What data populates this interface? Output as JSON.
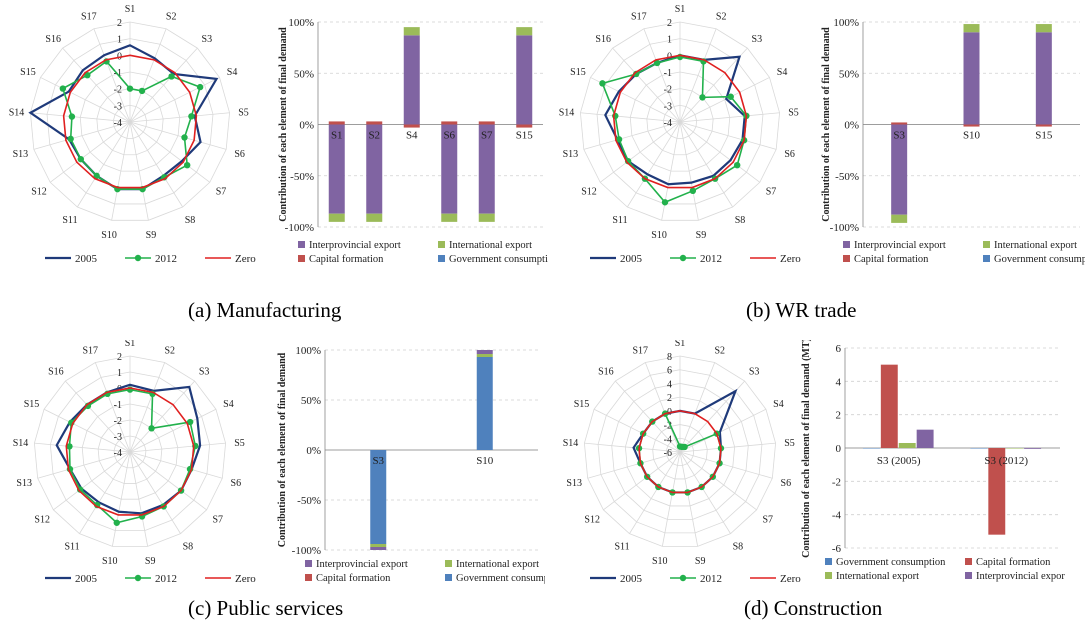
{
  "captions": {
    "a": "(a) Manufacturing",
    "b": "(b) WR trade",
    "c": "(c) Public services",
    "d": "(d) Construction"
  },
  "colors": {
    "s2005": "#1f3a7a",
    "s2012": "#22b14c",
    "zero": "#e02020",
    "interprovincial": "#8064a2",
    "international": "#9bbb59",
    "capital": "#c0504d",
    "government": "#4f81bd"
  },
  "chart_data": [
    {
      "id": "a-radar",
      "type": "radar",
      "axes": [
        "S1",
        "S2",
        "S3",
        "S4",
        "S5",
        "S6",
        "S7",
        "S8",
        "S9",
        "S10",
        "S11",
        "S12",
        "S13",
        "S14",
        "S15",
        "S16",
        "S17"
      ],
      "r_ticks": [
        "2",
        "1",
        "0",
        "-1",
        "-2",
        "-3",
        "-4"
      ],
      "rlim": [
        -4,
        2
      ],
      "series": [
        {
          "name": "2005",
          "values": [
            0.6,
            0.1,
            -0.1,
            1.8,
            -0.1,
            0.4,
            -0.1,
            -0.2,
            0.1,
            0.1,
            -0.2,
            -0.3,
            -0.2,
            2.0,
            0.1,
            0.2,
            0.3
          ]
        },
        {
          "name": "2012",
          "values": [
            -2.0,
            -2.0,
            -0.3,
            0.7,
            -0.3,
            -0.6,
            0.3,
            -0.1,
            0.1,
            0.1,
            -0.2,
            -0.3,
            -0.3,
            -0.5,
            0.5,
            -0.2,
            -0.1
          ]
        },
        {
          "name": "Zero",
          "values": [
            0,
            0,
            0,
            0,
            0,
            0,
            0,
            0,
            0,
            0,
            0,
            0,
            0,
            0,
            0,
            0,
            0
          ]
        }
      ],
      "legend": [
        "2005",
        "2012",
        "Zero"
      ]
    },
    {
      "id": "a-bar",
      "type": "bar",
      "ylabel": "Contribution of each element of final demand",
      "ylim": [
        -100,
        100
      ],
      "y_ticks": [
        "100%",
        "50%",
        "0%",
        "-50%",
        "-100%"
      ],
      "categories": [
        "S1",
        "S2",
        "S4",
        "S6",
        "S7",
        "S15"
      ],
      "series": [
        {
          "name": "Interprovincial export",
          "values": [
            -87,
            -87,
            87,
            -87,
            -87,
            87
          ]
        },
        {
          "name": "International export",
          "values": [
            -8,
            -8,
            8,
            -8,
            -8,
            8
          ]
        },
        {
          "name": "Capital formation",
          "values": [
            3,
            3,
            -3,
            3,
            3,
            -3
          ]
        },
        {
          "name": "Government consumption",
          "values": [
            0,
            0,
            0,
            0,
            0,
            0
          ]
        }
      ],
      "legend": [
        "Interprovincial export",
        "International export",
        "Capital formation",
        "Government consumption"
      ]
    },
    {
      "id": "b-radar",
      "type": "radar",
      "axes": [
        "S1",
        "S2",
        "S3",
        "S4",
        "S5",
        "S6",
        "S7",
        "S8",
        "S9",
        "S10",
        "S11",
        "S12",
        "S13",
        "S14",
        "S15",
        "S16",
        "S17"
      ],
      "r_ticks": [
        "2",
        "1",
        "0",
        "-1",
        "-2",
        "-3",
        "-4"
      ],
      "rlim": [
        -4,
        2
      ],
      "series": [
        {
          "name": "2005",
          "values": [
            0,
            0,
            1.3,
            -0.9,
            -0.1,
            -0.1,
            -0.2,
            -0.2,
            -0.3,
            -0.2,
            -0.3,
            -0.1,
            -0.1,
            0.5,
            0.1,
            -0.1,
            -0.2
          ]
        },
        {
          "name": "2012",
          "values": [
            -0.1,
            -0.1,
            -2.0,
            -0.6,
            0,
            0,
            0.3,
            0,
            0.2,
            0.9,
            0,
            -0.1,
            -0.2,
            -0.1,
            1.2,
            -0.1,
            -0.2
          ]
        },
        {
          "name": "Zero",
          "values": [
            0,
            0,
            0,
            0,
            0,
            0,
            0,
            0,
            0,
            0,
            0,
            0,
            0,
            0,
            0,
            0,
            0
          ]
        }
      ],
      "legend": [
        "2005",
        "2012",
        "Zero"
      ]
    },
    {
      "id": "b-bar",
      "type": "bar",
      "ylabel": "Contribution of each element of final demand",
      "ylim": [
        -100,
        100
      ],
      "y_ticks": [
        "100%",
        "50%",
        "0%",
        "-50%",
        "-100%"
      ],
      "categories": [
        "S3",
        "S10",
        "S15"
      ],
      "series": [
        {
          "name": "Interprovincial export",
          "values": [
            -88,
            90,
            90
          ]
        },
        {
          "name": "International export",
          "values": [
            -8,
            8,
            8
          ]
        },
        {
          "name": "Capital formation",
          "values": [
            2,
            -2,
            -2
          ]
        },
        {
          "name": "Government consumption",
          "values": [
            0,
            0,
            0
          ]
        }
      ],
      "legend": [
        "Interprovincial export",
        "International export",
        "Capital formation",
        "Government consumption"
      ]
    },
    {
      "id": "c-radar",
      "type": "radar",
      "axes": [
        "S1",
        "S2",
        "S3",
        "S4",
        "S5",
        "S6",
        "S7",
        "S8",
        "S9",
        "S10",
        "S11",
        "S12",
        "S13",
        "S14",
        "S15",
        "S16",
        "S17"
      ],
      "r_ticks": [
        "2",
        "1",
        "0",
        "-1",
        "-2",
        "-3",
        "-4"
      ],
      "rlim": [
        -4,
        2
      ],
      "series": [
        {
          "name": "2005",
          "values": [
            0.2,
            0.1,
            1.5,
            0.7,
            0.4,
            0,
            0,
            -0.1,
            -0.1,
            -0.2,
            -0.3,
            -0.2,
            -0.1,
            0.6,
            0.2,
            0,
            0
          ]
        },
        {
          "name": "2012",
          "values": [
            -0.1,
            -0.1,
            -2.0,
            0.2,
            0.1,
            -0.1,
            0,
            0,
            0.1,
            0.5,
            -0.1,
            -0.1,
            -0.1,
            -0.2,
            0.1,
            -0.1,
            -0.1
          ]
        },
        {
          "name": "Zero",
          "values": [
            0,
            0,
            0,
            0,
            0,
            0,
            0,
            0,
            0,
            0,
            0,
            0,
            0,
            0,
            0,
            0,
            0
          ]
        }
      ],
      "legend": [
        "2005",
        "2012",
        "Zero"
      ]
    },
    {
      "id": "c-bar",
      "type": "bar",
      "ylabel": "Contribution of each element of final demand",
      "ylim": [
        -100,
        100
      ],
      "y_ticks": [
        "100%",
        "50%",
        "0%",
        "-50%",
        "-100%"
      ],
      "categories": [
        "S3",
        "S10"
      ],
      "series": [
        {
          "name": "Government consumption",
          "values": [
            -94,
            93
          ]
        },
        {
          "name": "International export",
          "values": [
            -3,
            3
          ]
        },
        {
          "name": "Interprovincial export",
          "values": [
            -3,
            4
          ]
        },
        {
          "name": "Capital formation",
          "values": [
            0,
            0
          ]
        }
      ],
      "legend": [
        "Interprovincial export",
        "International export",
        "Capital formation",
        "Government consumption"
      ]
    },
    {
      "id": "d-radar",
      "type": "radar",
      "axes": [
        "S1",
        "S2",
        "S3",
        "S4",
        "S5",
        "S6",
        "S7",
        "S8",
        "S9",
        "S10",
        "S11",
        "S12",
        "S13",
        "S14",
        "S15",
        "S16",
        "S17"
      ],
      "r_ticks": [
        "8",
        "6",
        "4",
        "2",
        "0",
        "-2",
        "-4",
        "-6"
      ],
      "rlim": [
        -6,
        8
      ],
      "series": [
        {
          "name": "2005",
          "values": [
            0,
            0,
            6.0,
            0.5,
            0,
            0,
            0,
            0,
            0,
            0,
            0,
            0,
            0,
            0.8,
            0,
            0,
            0
          ]
        },
        {
          "name": "2012",
          "values": [
            -5.2,
            -5.2,
            -5.0,
            0,
            0,
            0,
            0,
            0,
            0,
            0,
            0,
            0,
            0,
            0,
            0,
            0,
            0
          ]
        },
        {
          "name": "Zero",
          "values": [
            0,
            0,
            0,
            0,
            0,
            0,
            0,
            0,
            0,
            0,
            0,
            0,
            0,
            0,
            0,
            0,
            0
          ]
        }
      ],
      "legend": [
        "2005",
        "2012",
        "Zero"
      ]
    },
    {
      "id": "d-bar",
      "type": "bar",
      "ylabel": "Contribution of each element of final demand (MT)",
      "ylim": [
        -6,
        6
      ],
      "y_ticks": [
        "6",
        "4",
        "2",
        "0",
        "-2",
        "-4",
        "-6"
      ],
      "grouped": true,
      "categories": [
        "S3 (2005)",
        "S3 (2012)"
      ],
      "series": [
        {
          "name": "Government consumption",
          "values": [
            0,
            0
          ]
        },
        {
          "name": "Capital formation",
          "values": [
            5.0,
            -5.2
          ]
        },
        {
          "name": "International export",
          "values": [
            0.3,
            0
          ]
        },
        {
          "name": "Interprovincial export",
          "values": [
            1.1,
            -0.05
          ]
        }
      ],
      "legend": [
        "Government consumption",
        "Capital formation",
        "International export",
        "Interprovincial export"
      ]
    }
  ]
}
